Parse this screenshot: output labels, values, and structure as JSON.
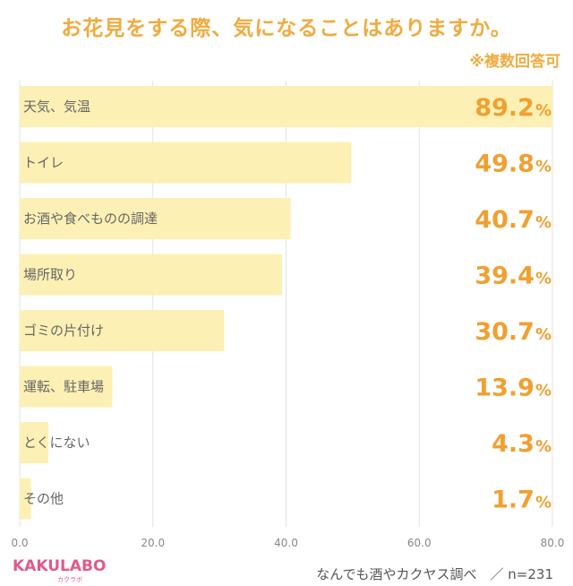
{
  "title": "お花見をする際、気になることはありますか。",
  "subtitle": "※複数回答可",
  "logo": {
    "text": "KAKULABO",
    "sub": "カクラボ"
  },
  "source": "なんでも酒やカクヤス調べ　／ n=231",
  "chart_data": {
    "type": "bar",
    "orientation": "horizontal",
    "title": "お花見をする際、気になることはありますか。",
    "categories": [
      "天気、気温",
      "トイレ",
      "お酒や食べものの調達",
      "場所取り",
      "ゴミの片付け",
      "運転、駐車場",
      "とくにない",
      "その他"
    ],
    "values": [
      89.2,
      49.8,
      40.7,
      39.4,
      30.7,
      13.9,
      4.3,
      1.7
    ],
    "value_labels": [
      "89.2",
      "49.8",
      "40.7",
      "39.4",
      "30.7",
      "13.9",
      "4.3",
      "1.7"
    ],
    "value_suffix": "%",
    "xlim": [
      0,
      80
    ],
    "xticks": [
      "0.0",
      "20.0",
      "40.0",
      "60.0",
      "80.0"
    ],
    "grid": true,
    "bar_color": "#fdf0b4",
    "label_color": "#f0a030"
  }
}
